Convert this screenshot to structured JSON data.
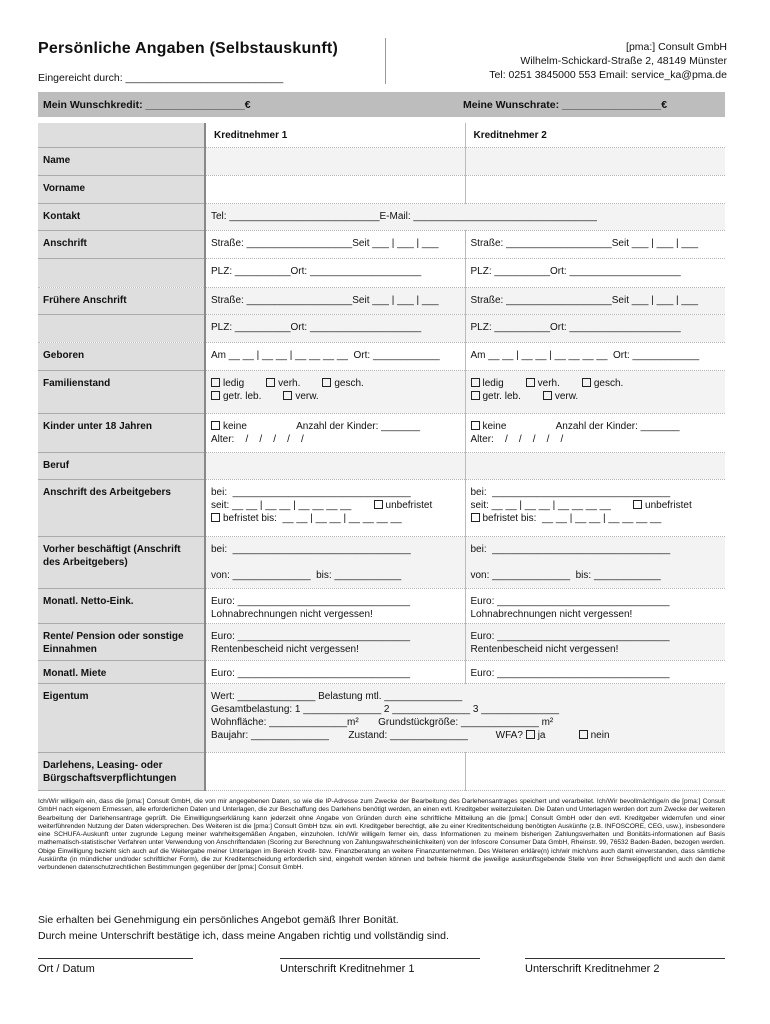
{
  "header": {
    "title": "Persönliche Angaben (Selbstauskunft)",
    "submitted_by": "Eingereicht durch: ___________________________",
    "company": [
      "[pma:] Consult GmbH",
      "Wilhelm-Schickard-Straße 2, 48149 Münster",
      "Tel: 0251 3845000 553   Email: service_ka@pma.de"
    ]
  },
  "band": {
    "credit": "Mein Wunschkredit: _________________€",
    "rate": "Meine Wunschrate: _________________€"
  },
  "columns": [
    "Kreditnehmer 1",
    "Kreditnehmer 2"
  ],
  "rows": [
    {
      "label": "Name",
      "h": 28,
      "k": []
    },
    {
      "label": "Vorname",
      "h": 28,
      "k": []
    },
    {
      "label": "Kontakt",
      "h": 27,
      "span": true,
      "k": [
        [
          "Tel: ___________________________E-Mail: _________________________________"
        ]
      ]
    },
    {
      "label": "Anschrift",
      "h": 28,
      "k": [
        [
          "Straße: ___________________Seit ___ | ___ | ___"
        ]
      ]
    },
    {
      "label": "",
      "h": 29,
      "k": [
        [
          "PLZ: __________Ort: ____________________"
        ]
      ],
      "cont": true
    },
    {
      "label": "Frühere Anschrift",
      "h": 27,
      "k": [
        [
          "Straße: ___________________Seit ___ | ___ | ___"
        ]
      ]
    },
    {
      "label": "",
      "h": 28,
      "k": [
        [
          "PLZ: __________Ort: ____________________"
        ]
      ],
      "cont": true
    },
    {
      "label": "Geboren",
      "h": 28,
      "k": [
        [
          "Am __ __ | __ __ | __ __ __ __  Ort: ____________"
        ]
      ]
    },
    {
      "label": "Familienstand",
      "h": 43,
      "k": [
        [
          {
            "cb": "ledig"
          },
          {
            "cb": "verh."
          },
          {
            "cb": "gesch."
          }
        ],
        [
          {
            "cb": "getr. leb."
          },
          {
            "cb": "verw."
          }
        ]
      ]
    },
    {
      "label": "Kinder unter 18 Jahren",
      "h": 39,
      "k": [
        [
          {
            "cb": "keine"
          },
          "          Anzahl der Kinder: _______"
        ],
        [
          "Alter:    /    /    /    /    /"
        ]
      ]
    },
    {
      "label": "Beruf",
      "h": 27,
      "k": []
    },
    {
      "label": "Anschrift des Arbeitgebers",
      "h": 57,
      "k": [
        [
          "bei:  ________________________________"
        ],
        [
          "seit: __ __ | __ __ | __ __ __ __        ",
          {
            "cb": "unbefristet"
          }
        ],
        [
          {
            "cb": "befristet bis:  __ __ | __ __ | __ __ __ __"
          }
        ]
      ]
    },
    {
      "label": "Vorher beschäftigt (Anschrift des Arbeitgebers)",
      "h": 52,
      "k": [
        [
          "bei:  ________________________________"
        ],
        [
          " "
        ],
        [
          "von: ______________  bis: ____________"
        ]
      ]
    },
    {
      "label": "Monatl. Netto-Eink.",
      "h": 35,
      "k": [
        [
          "Euro: _______________________________"
        ],
        [
          "Lohnabrechnungen nicht vergessen!"
        ]
      ]
    },
    {
      "label": "Rente/ Pension oder sonstige Einnahmen",
      "h": 37,
      "k": [
        [
          "Euro: _______________________________"
        ],
        [
          "Rentenbescheid nicht vergessen!"
        ]
      ]
    },
    {
      "label": "Monatl. Miete",
      "h": 23,
      "k": [
        [
          "Euro: _______________________________"
        ]
      ]
    },
    {
      "label": "Eigentum",
      "h": 69,
      "span": true,
      "k": [
        [
          "Wert: ______________ Belastung mtl. ______________"
        ],
        [
          "Gesamtbelastung: 1 ______________ 2 ______________ 3 ______________"
        ],
        [
          "Wohnfläche: ______________m²       Grundstückgröße: ______________ m²"
        ],
        [
          "Baujahr: ______________       Zustand: ______________          WFA? ",
          {
            "cb": "ja"
          },
          "    ",
          {
            "cb": "nein"
          }
        ]
      ]
    },
    {
      "label": "Darlehens, Leasing- oder Bürgschaftsverpflichtungen",
      "h": 38,
      "k": []
    }
  ],
  "fine_print": "Ich/Wir willige/n ein, dass die [pma:] Consult GmbH, die von mir angegebenen Daten, so wie die IP-Adresse zum Zwecke der Bearbeitung des Darlehensantrages speichert und verarbeitet. Ich/Wir bevollmächtige/n die [pma:] Consult GmbH nach eigenem Ermessen, alle erforderlichen Daten und Unterlagen, die zur Beschaffung des Darlehens benötigt werden, an einen evtl. Kreditgeber weiterzuleiten. Die Daten und Unterlagen werden dort zum Zwecke der weiteren Bearbeitung der Darlehensantrage geprüft. Die Einwilligungserklärung kann jederzeit ohne Angabe von Gründen durch eine schriftliche Mitteilung an die [pma:] Consult GmbH oder den evtl. Kreditgeber widerrufen und einer weiterführenden Nutzung der Daten widersprechen. Des Weiteren ist die [pma:] Consult GmbH bzw. ein evtl. Kreditgeber berechtigt, alle zu einer Kreditentscheidung benötigten Auskünfte (z.B. INFOSCORE, CEG, usw.), insbesondere eine SCHUFA-Auskunft unter zugrunde Legung meiner wahrheitsgemäßen Angaben, einzuholen. Ich/Wir willige/n ferner ein, dass Informationen zu meinem bisherigen Zahlungsverhalten und Bonitäts-informationen auf Basis mathematisch-statistischer Verfahren unter Verwendung von Anschriftendaten (Scoring zur Berechnung von Zahlungswahrscheinlichkeiten) von der Infoscore Consumer Data GmbH, Rheinstr. 99, 76532 Baden-Baden, bezogen werden. Obige Einwilligung bezieht sich auch auf die Weitergabe meiner Unterlagen im Bereich Kredit- bzw. Finanzberatung an weitere Finanzunternehmen. Des Weiteren erkläre(n) ich/wir mich/uns auch damit einverstanden, dass sämtliche Auskünfte (in mündlicher und/oder schriftlicher Form), die zur Kreditentscheidung erforderlich sind, eingeholt werden können und befreie hiermit die jeweilige auskunftsgebende Stelle von ihrer Schweigepflicht und auch den damit verbundenen datenschutzrechtlichen Bestimmungen gegenüber der [pma:] Consult GmbH.",
  "notes": [
    "Sie erhalten bei Genehmigung ein persönliches Angebot gemäß Ihrer Bonität.",
    "Durch meine Unterschrift bestätige ich, dass meine Angaben richtig und vollständig sind."
  ],
  "signatures": [
    "Ort / Datum",
    "Unterschrift Kreditnehmer 1",
    "Unterschrift Kreditnehmer 2"
  ]
}
